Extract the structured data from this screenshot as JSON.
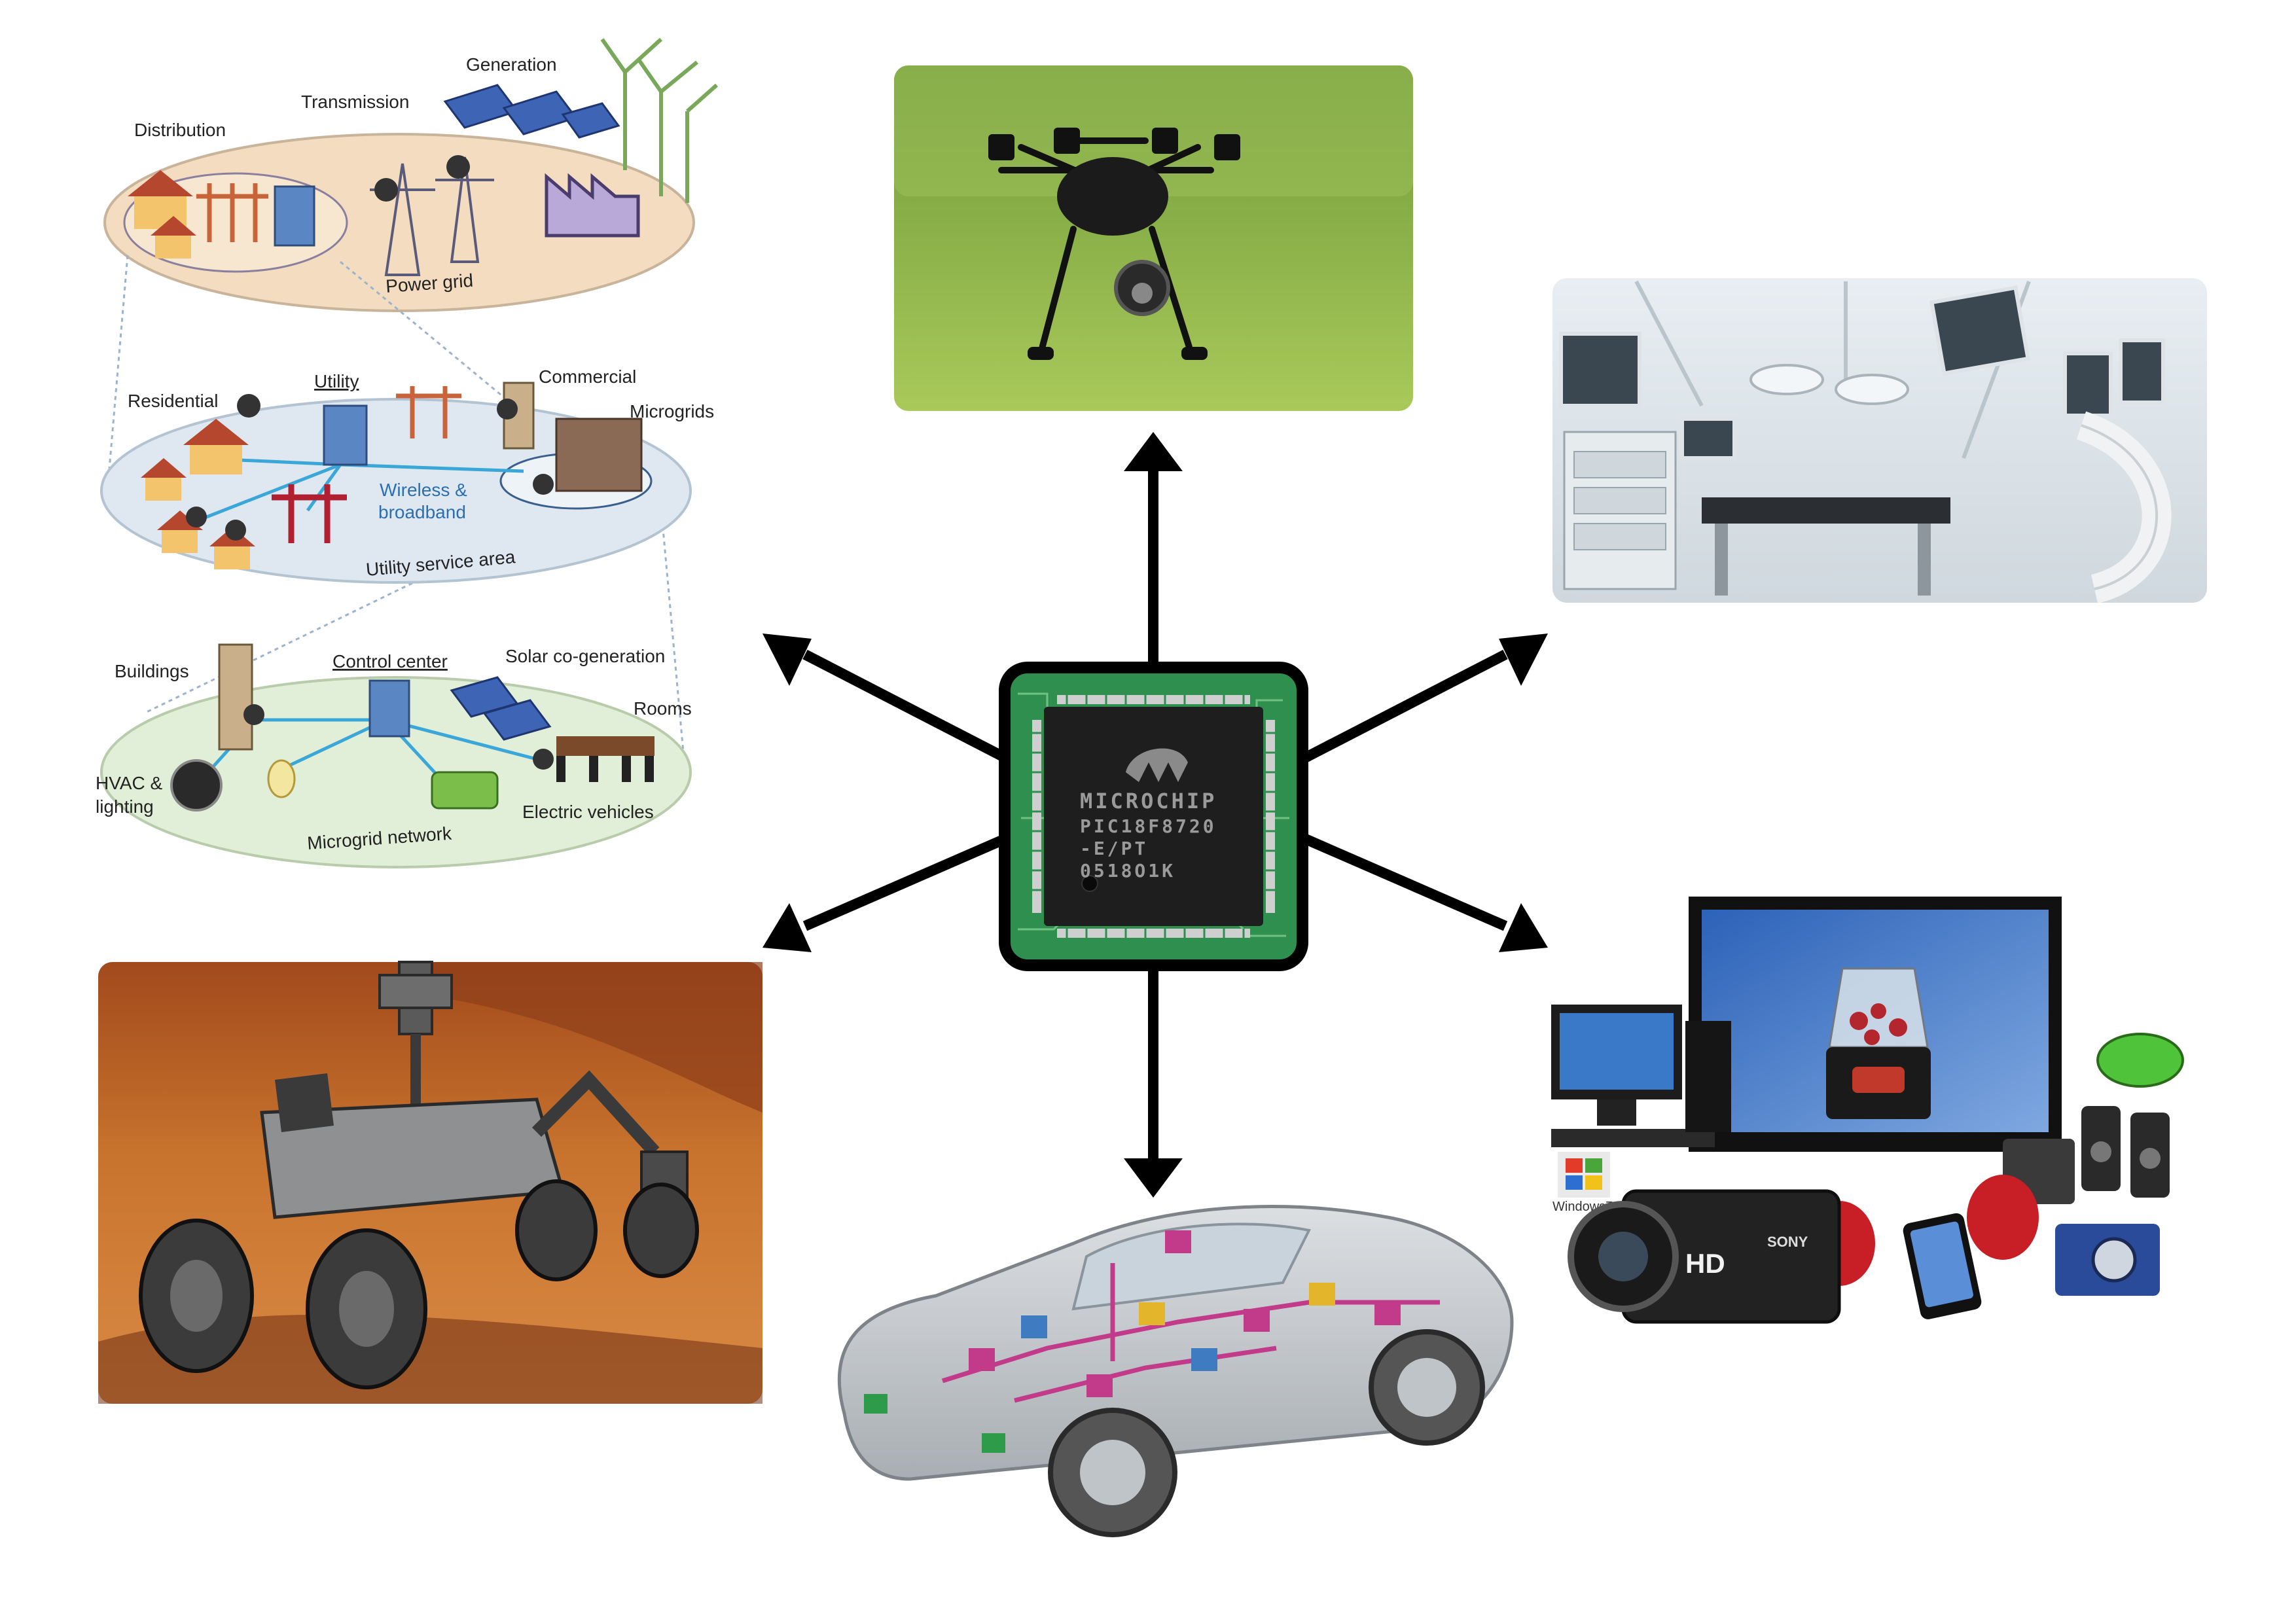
{
  "smart_grid": {
    "generation": "Generation",
    "transmission": "Transmission",
    "distribution": "Distribution",
    "power_grid": "Power grid",
    "residential": "Residential",
    "utility": "Utility",
    "commercial": "Commercial",
    "microgrids": "Microgrids",
    "wireless_line1": "Wireless &",
    "wireless_line2": "broadband",
    "utility_service_area": "Utility service area",
    "buildings": "Buildings",
    "control_center": "Control center",
    "solar_cogen": "Solar co-generation",
    "rooms": "Rooms",
    "hvac_line1": "HVAC &",
    "hvac_line2": "lighting",
    "electric_vehicles": "Electric vehicles",
    "microgrid_network": "Microgrid network"
  },
  "chip": {
    "brand": "MICROCHIP",
    "part_line1": "PIC18F8720",
    "part_line2": "-E/PT",
    "part_line3": "0518O1K"
  },
  "consumer": {
    "hd": "HD",
    "brand": "SONY",
    "windows": "Windows7"
  },
  "colors": {
    "arrow": "#000000",
    "pcb_green": "#2f8f4e",
    "chip_black": "#1e1e1e",
    "label_blue": "#2b6fb3"
  }
}
